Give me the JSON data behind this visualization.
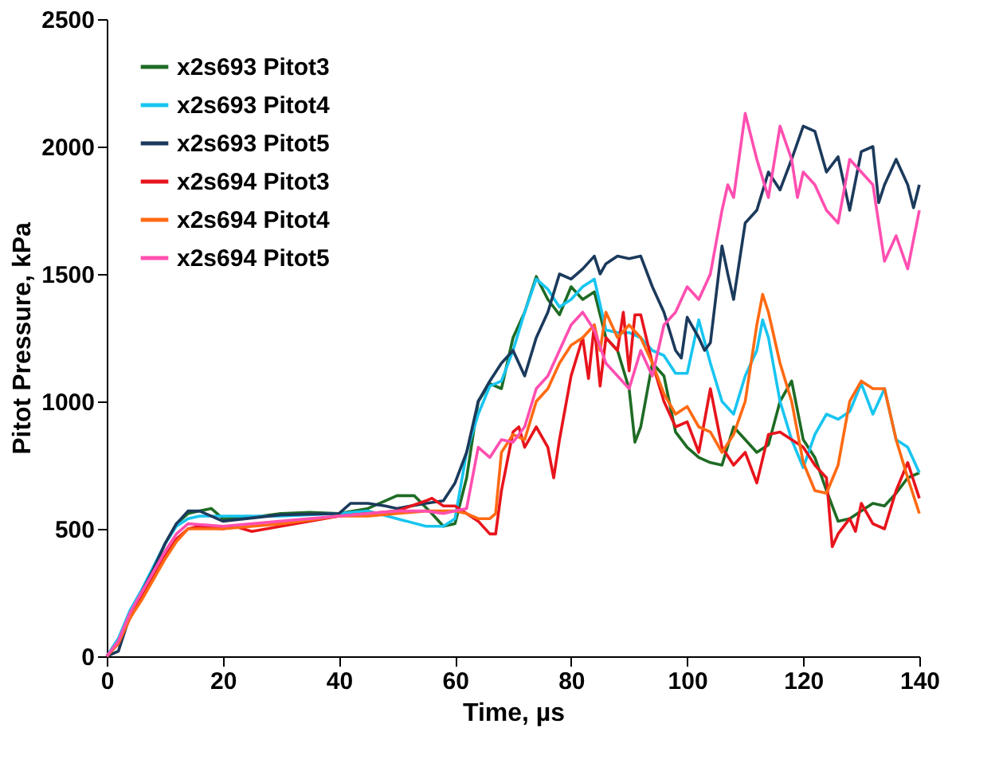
{
  "chart_data": {
    "type": "line",
    "xlabel": "Time, µs",
    "ylabel": "Pitot Pressure, kPa",
    "xlim": [
      0,
      140
    ],
    "ylim": [
      0,
      2500
    ],
    "xticks": [
      0,
      20,
      40,
      60,
      80,
      100,
      120,
      140
    ],
    "yticks": [
      0,
      500,
      1000,
      1500,
      2000,
      2500
    ],
    "grid": false,
    "legend": "top left",
    "marker": "none",
    "line_style": "solid",
    "series": [
      {
        "name": "x2s693 Pitot3",
        "color": "#1e6b24",
        "x": [
          8,
          10,
          12,
          14,
          16,
          18,
          20,
          25,
          30,
          35,
          40,
          45,
          50,
          53,
          56,
          58,
          60,
          62,
          64,
          66,
          68,
          70,
          72,
          74,
          76,
          78,
          80,
          82,
          84,
          86,
          88,
          90,
          91,
          92,
          94,
          96,
          98,
          100,
          102,
          104,
          106,
          108,
          110,
          112,
          114,
          116,
          118,
          120,
          122,
          124,
          126,
          128,
          130,
          132,
          134,
          136,
          138,
          140
        ],
        "values": [
          340,
          440,
          520,
          560,
          570,
          580,
          540,
          545,
          560,
          565,
          560,
          580,
          630,
          630,
          560,
          510,
          520,
          700,
          1000,
          1070,
          1050,
          1250,
          1350,
          1490,
          1400,
          1340,
          1450,
          1400,
          1430,
          1250,
          1200,
          1050,
          840,
          900,
          1150,
          1100,
          880,
          820,
          780,
          760,
          750,
          900,
          850,
          800,
          830,
          1000,
          1080,
          850,
          780,
          650,
          530,
          540,
          570,
          600,
          590,
          640,
          700,
          720
        ]
      },
      {
        "name": "x2s693 Pitot4",
        "color": "#18c5f0",
        "x": [
          0,
          2,
          4,
          6,
          8,
          10,
          12,
          14,
          16,
          20,
          30,
          40,
          45,
          50,
          55,
          58,
          60,
          62,
          64,
          66,
          68,
          70,
          72,
          74,
          76,
          78,
          80,
          82,
          84,
          86,
          88,
          90,
          92,
          94,
          96,
          98,
          100,
          102,
          104,
          106,
          108,
          110,
          112,
          113,
          114,
          116,
          118,
          120,
          122,
          124,
          126,
          128,
          130,
          132,
          134,
          136,
          138,
          140
        ],
        "values": [
          0,
          70,
          180,
          260,
          350,
          440,
          510,
          540,
          550,
          550,
          550,
          560,
          570,
          540,
          510,
          510,
          540,
          800,
          950,
          1060,
          1080,
          1200,
          1350,
          1480,
          1440,
          1370,
          1400,
          1450,
          1480,
          1280,
          1270,
          1270,
          1250,
          1200,
          1180,
          1110,
          1110,
          1320,
          1150,
          1000,
          950,
          1100,
          1200,
          1320,
          1250,
          1000,
          850,
          740,
          870,
          950,
          930,
          960,
          1070,
          950,
          1050,
          850,
          820,
          720
        ]
      },
      {
        "name": "x2s693 Pitot5",
        "color": "#1b3a5c",
        "x": [
          0,
          2,
          4,
          6,
          8,
          10,
          12,
          14,
          16,
          20,
          30,
          40,
          42,
          45,
          48,
          50,
          55,
          58,
          60,
          62,
          64,
          66,
          68,
          70,
          72,
          74,
          76,
          78,
          80,
          82,
          84,
          85,
          86,
          88,
          90,
          92,
          94,
          96,
          98,
          99,
          100,
          102,
          103,
          104,
          106,
          107,
          108,
          110,
          112,
          114,
          116,
          118,
          120,
          122,
          124,
          126,
          128,
          130,
          132,
          133,
          134,
          136,
          138,
          139,
          140
        ],
        "values": [
          0,
          20,
          160,
          250,
          340,
          440,
          520,
          570,
          570,
          530,
          555,
          560,
          600,
          600,
          590,
          580,
          600,
          610,
          680,
          800,
          1000,
          1080,
          1150,
          1200,
          1100,
          1250,
          1350,
          1500,
          1480,
          1520,
          1570,
          1500,
          1540,
          1570,
          1560,
          1570,
          1450,
          1350,
          1200,
          1170,
          1330,
          1250,
          1200,
          1230,
          1610,
          1500,
          1400,
          1700,
          1750,
          1900,
          1830,
          1950,
          2080,
          2060,
          1900,
          1960,
          1750,
          1980,
          2000,
          1780,
          1850,
          1950,
          1850,
          1760,
          1850
        ]
      },
      {
        "name": "x2s694 Pitot3",
        "color": "#e8141c",
        "x": [
          0,
          2,
          4,
          6,
          8,
          10,
          12,
          14,
          16,
          20,
          22,
          25,
          30,
          40,
          45,
          50,
          55,
          56,
          58,
          60,
          62,
          64,
          66,
          67,
          68,
          70,
          71,
          72,
          74,
          76,
          77,
          78,
          80,
          82,
          83,
          84,
          85,
          86,
          88,
          89,
          90,
          91,
          92,
          94,
          96,
          98,
          100,
          102,
          104,
          106,
          108,
          110,
          112,
          114,
          116,
          118,
          120,
          122,
          124,
          125,
          126,
          128,
          129,
          130,
          132,
          134,
          136,
          138,
          140
        ],
        "values": [
          0,
          50,
          150,
          230,
          310,
          390,
          460,
          500,
          510,
          500,
          510,
          490,
          510,
          550,
          560,
          570,
          610,
          620,
          590,
          590,
          560,
          530,
          480,
          480,
          650,
          880,
          900,
          820,
          900,
          820,
          700,
          850,
          1100,
          1250,
          1090,
          1300,
          1060,
          1250,
          1200,
          1350,
          1120,
          1340,
          1340,
          1150,
          1000,
          900,
          920,
          800,
          1050,
          820,
          750,
          800,
          680,
          870,
          880,
          850,
          820,
          750,
          700,
          430,
          480,
          540,
          490,
          600,
          520,
          500,
          650,
          760,
          620
        ]
      },
      {
        "name": "x2s694 Pitot4",
        "color": "#ff6a13",
        "x": [
          0,
          2,
          4,
          6,
          8,
          10,
          12,
          14,
          20,
          30,
          40,
          45,
          50,
          55,
          60,
          62,
          64,
          66,
          67,
          68,
          70,
          72,
          74,
          76,
          78,
          80,
          82,
          84,
          85,
          86,
          88,
          90,
          92,
          94,
          96,
          98,
          100,
          102,
          104,
          106,
          108,
          110,
          112,
          113,
          114,
          116,
          118,
          120,
          122,
          124,
          126,
          128,
          130,
          132,
          134,
          136,
          138,
          140
        ],
        "values": [
          0,
          50,
          150,
          220,
          300,
          380,
          450,
          500,
          500,
          520,
          550,
          550,
          560,
          570,
          570,
          560,
          540,
          540,
          560,
          800,
          870,
          850,
          1000,
          1050,
          1150,
          1220,
          1250,
          1300,
          1200,
          1350,
          1250,
          1300,
          1250,
          1150,
          1030,
          950,
          980,
          900,
          880,
          800,
          870,
          1000,
          1300,
          1420,
          1350,
          1150,
          1000,
          760,
          650,
          640,
          750,
          1000,
          1080,
          1050,
          1050,
          850,
          700,
          560
        ]
      },
      {
        "name": "x2s694 Pitot5",
        "color": "#ff4fb0",
        "x": [
          0,
          2,
          4,
          6,
          8,
          10,
          12,
          14,
          20,
          30,
          40,
          45,
          50,
          55,
          58,
          60,
          62,
          64,
          66,
          68,
          70,
          72,
          74,
          76,
          78,
          80,
          82,
          84,
          86,
          88,
          90,
          92,
          94,
          96,
          98,
          100,
          102,
          104,
          106,
          107,
          108,
          110,
          112,
          114,
          116,
          118,
          119,
          120,
          122,
          124,
          126,
          128,
          130,
          132,
          134,
          136,
          138,
          140
        ],
        "values": [
          0,
          60,
          170,
          250,
          330,
          410,
          480,
          520,
          510,
          530,
          550,
          560,
          570,
          570,
          560,
          570,
          580,
          820,
          780,
          850,
          840,
          900,
          1050,
          1100,
          1200,
          1300,
          1350,
          1280,
          1150,
          1100,
          1050,
          1200,
          1100,
          1300,
          1350,
          1450,
          1400,
          1500,
          1750,
          1850,
          1800,
          2130,
          1950,
          1800,
          2080,
          1950,
          1800,
          1900,
          1850,
          1750,
          1700,
          1950,
          1900,
          1850,
          1550,
          1650,
          1520,
          1750
        ]
      }
    ]
  }
}
